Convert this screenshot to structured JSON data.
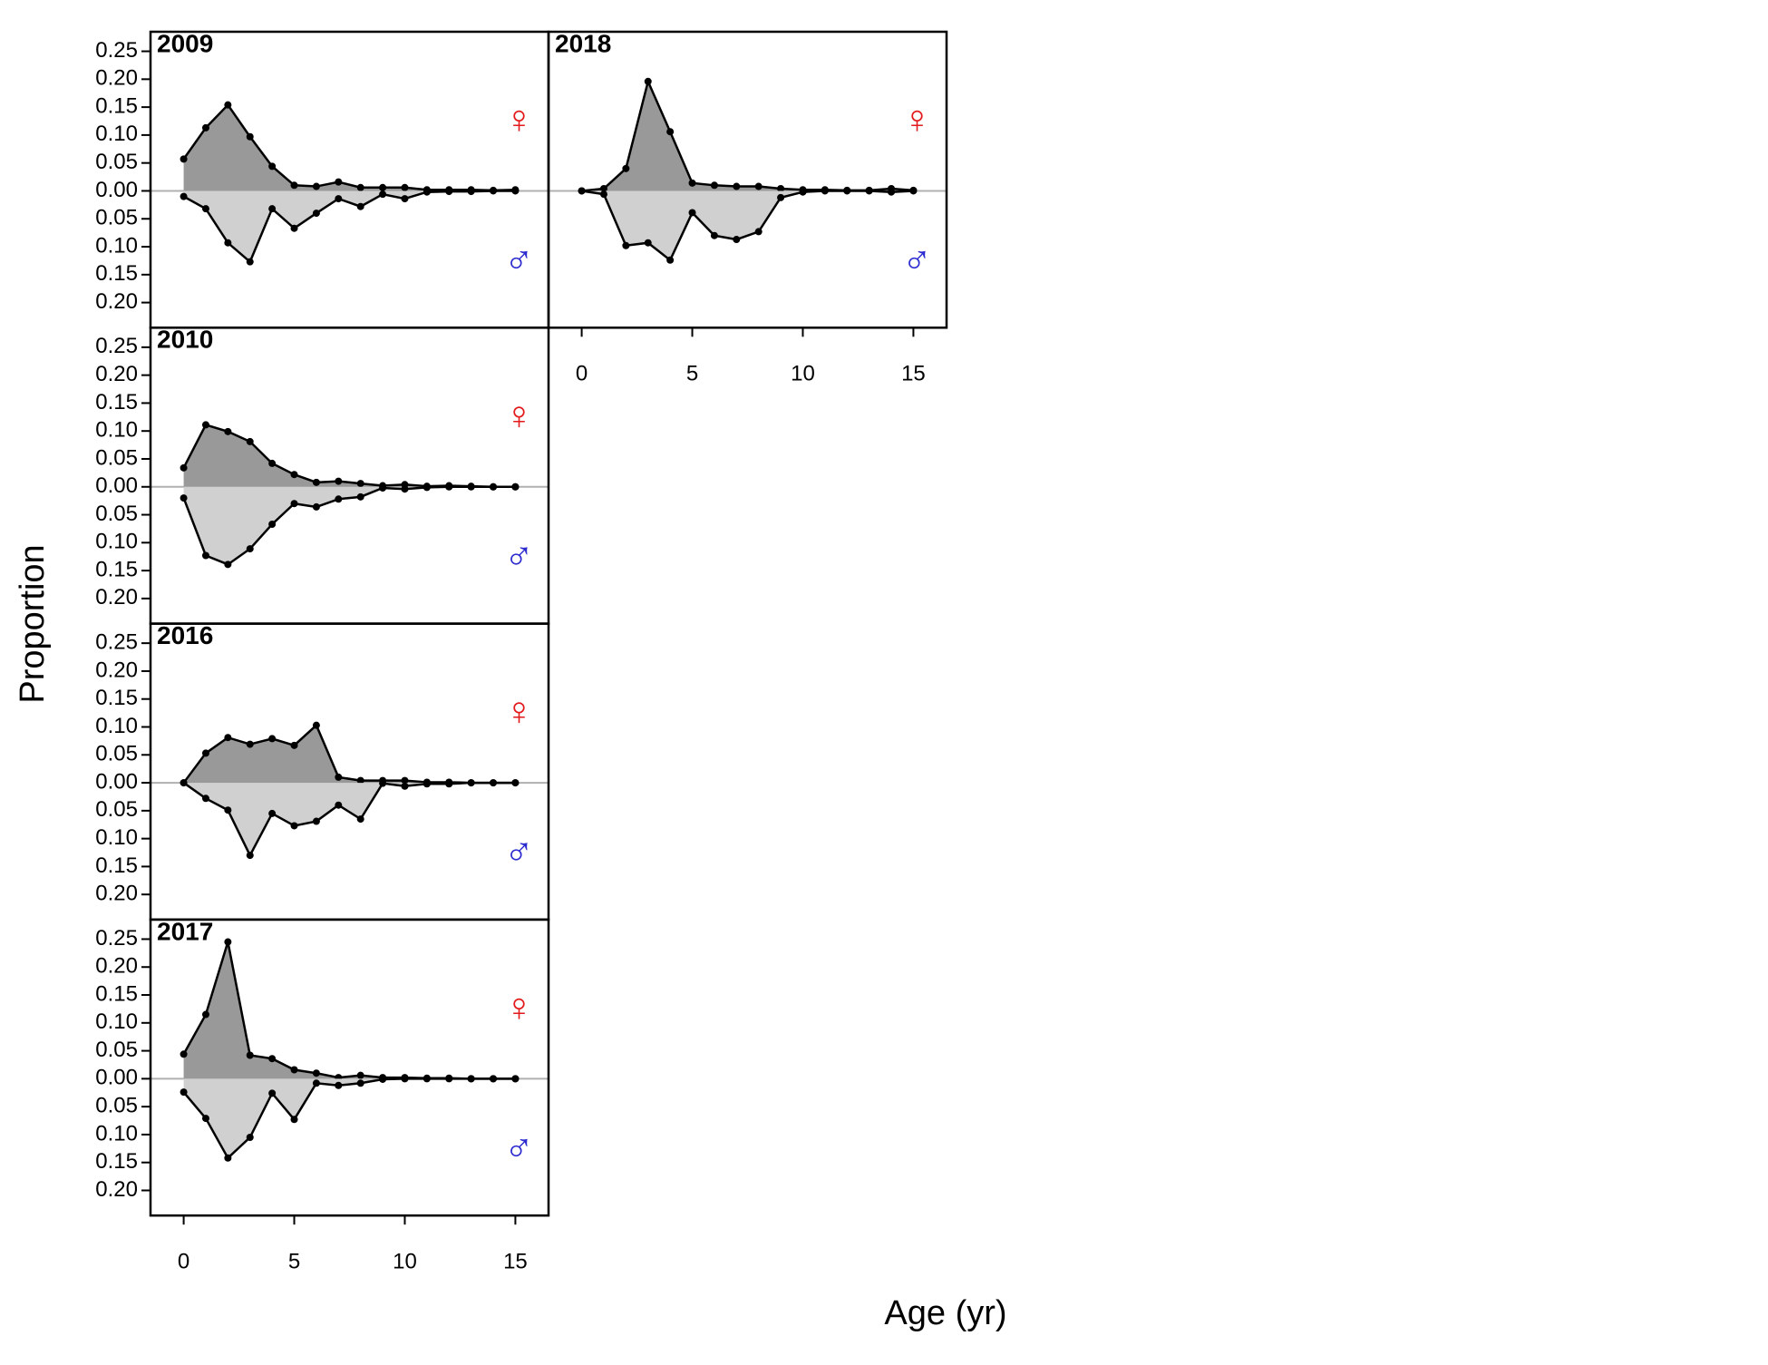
{
  "xlabel": "Age (yr)",
  "ylabel": "Proportion",
  "chart_data": [
    {
      "type": "line",
      "title": "2009",
      "x": [
        0,
        1,
        2,
        3,
        4,
        5,
        6,
        7,
        8,
        9,
        10,
        11,
        12,
        13,
        14,
        15
      ],
      "xlim": [
        -1.5,
        16.5
      ],
      "ylim": [
        -0.245,
        0.285
      ],
      "yticks": [
        0.25,
        {
          "value": 0.2,
          "label": "0.20"
        },
        0.15,
        {
          "value": 0.1,
          "label": "0.10"
        },
        0.05,
        {
          "value": 0,
          "label": "0.00"
        },
        {
          "value": -0.05,
          "label": "0.05"
        },
        {
          "value": -0.1,
          "label": "0.10"
        },
        {
          "value": -0.15,
          "label": "0.15"
        },
        {
          "value": -0.2,
          "label": "0.20"
        }
      ],
      "series": [
        {
          "name": "♀",
          "color": "#e31a1c",
          "fill": "#999999",
          "values": [
            0.057,
            0.113,
            0.154,
            0.097,
            0.044,
            0.01,
            0.008,
            0.016,
            0.006,
            0.006,
            0.006,
            0.002,
            0.002,
            0.002,
            0.001,
            0.002
          ]
        },
        {
          "name": "♂",
          "color": "#2b2bd0",
          "fill": "#d0d0d0",
          "values": [
            -0.01,
            -0.032,
            -0.093,
            -0.127,
            -0.032,
            -0.067,
            -0.04,
            -0.014,
            -0.028,
            -0.006,
            -0.014,
            -0.002,
            -0.001,
            -0.001,
            0,
            0
          ]
        }
      ]
    },
    {
      "type": "line",
      "title": "2018",
      "x": [
        0,
        1,
        2,
        3,
        4,
        5,
        6,
        7,
        8,
        9,
        10,
        11,
        12,
        13,
        14,
        15
      ],
      "xlim": [
        -1.5,
        16.5
      ],
      "ylim": [
        -0.245,
        0.285
      ],
      "xticks": [
        0,
        5,
        10,
        15
      ],
      "series": [
        {
          "name": "♀",
          "color": "#e31a1c",
          "fill": "#999999",
          "values": [
            0,
            0.004,
            0.04,
            0.196,
            0.106,
            0.014,
            0.01,
            0.008,
            0.008,
            0.004,
            0.002,
            0.002,
            0.001,
            0.001,
            0.004,
            0.001
          ]
        },
        {
          "name": "♂",
          "color": "#2b2bd0",
          "fill": "#d0d0d0",
          "values": [
            0,
            -0.006,
            -0.098,
            -0.093,
            -0.124,
            -0.039,
            -0.08,
            -0.087,
            -0.073,
            -0.012,
            -0.002,
            0,
            0,
            0,
            -0.002,
            0
          ]
        }
      ]
    },
    {
      "type": "line",
      "title": "2010",
      "x": [
        0,
        1,
        2,
        3,
        4,
        5,
        6,
        7,
        8,
        9,
        10,
        11,
        12,
        13,
        14,
        15
      ],
      "xlim": [
        -1.5,
        16.5
      ],
      "ylim": [
        -0.245,
        0.285
      ],
      "yticks": [
        0.25,
        {
          "value": 0.2,
          "label": "0.20"
        },
        0.15,
        {
          "value": 0.1,
          "label": "0.10"
        },
        0.05,
        {
          "value": 0,
          "label": "0.00"
        },
        {
          "value": -0.05,
          "label": "0.05"
        },
        {
          "value": -0.1,
          "label": "0.10"
        },
        {
          "value": -0.15,
          "label": "0.15"
        },
        {
          "value": -0.2,
          "label": "0.20"
        }
      ],
      "series": [
        {
          "name": "♀",
          "color": "#e31a1c",
          "fill": "#999999",
          "values": [
            0.034,
            0.111,
            0.099,
            0.081,
            0.042,
            0.022,
            0.008,
            0.01,
            0.006,
            0.002,
            0.004,
            0.001,
            0.002,
            0.001,
            0,
            0
          ]
        },
        {
          "name": "♂",
          "color": "#2b2bd0",
          "fill": "#d0d0d0",
          "values": [
            -0.02,
            -0.123,
            -0.139,
            -0.111,
            -0.067,
            -0.03,
            -0.036,
            -0.022,
            -0.018,
            -0.002,
            -0.004,
            -0.001,
            0,
            0,
            0,
            0
          ]
        }
      ]
    },
    {
      "type": "line",
      "title": "2016",
      "x": [
        0,
        1,
        2,
        3,
        4,
        5,
        6,
        7,
        8,
        9,
        10,
        11,
        12,
        13,
        14,
        15
      ],
      "xlim": [
        -1.5,
        16.5
      ],
      "ylim": [
        -0.245,
        0.285
      ],
      "yticks": [
        0.25,
        {
          "value": 0.2,
          "label": "0.20"
        },
        0.15,
        {
          "value": 0.1,
          "label": "0.10"
        },
        0.05,
        {
          "value": 0,
          "label": "0.00"
        },
        {
          "value": -0.05,
          "label": "0.05"
        },
        {
          "value": -0.1,
          "label": "0.10"
        },
        {
          "value": -0.15,
          "label": "0.15"
        },
        {
          "value": -0.2,
          "label": "0.20"
        }
      ],
      "series": [
        {
          "name": "♀",
          "color": "#e31a1c",
          "fill": "#999999",
          "values": [
            0,
            0.053,
            0.081,
            0.069,
            0.079,
            0.067,
            0.103,
            0.01,
            0.004,
            0.004,
            0.004,
            0.001,
            0.001,
            0,
            0,
            0
          ]
        },
        {
          "name": "♂",
          "color": "#2b2bd0",
          "fill": "#d0d0d0",
          "values": [
            0,
            -0.028,
            -0.049,
            -0.13,
            -0.055,
            -0.077,
            -0.069,
            -0.04,
            -0.065,
            -0.001,
            -0.006,
            -0.002,
            -0.002,
            0,
            0,
            0
          ]
        }
      ]
    },
    {
      "type": "line",
      "title": "2017",
      "x": [
        0,
        1,
        2,
        3,
        4,
        5,
        6,
        7,
        8,
        9,
        10,
        11,
        12,
        13,
        14,
        15
      ],
      "xlim": [
        -1.5,
        16.5
      ],
      "ylim": [
        -0.245,
        0.285
      ],
      "xticks": [
        0,
        5,
        10,
        15
      ],
      "yticks": [
        0.25,
        {
          "value": 0.2,
          "label": "0.20"
        },
        0.15,
        {
          "value": 0.1,
          "label": "0.10"
        },
        0.05,
        {
          "value": 0,
          "label": "0.00"
        },
        {
          "value": -0.05,
          "label": "0.05"
        },
        {
          "value": -0.1,
          "label": "0.10"
        },
        {
          "value": -0.15,
          "label": "0.15"
        },
        {
          "value": -0.2,
          "label": "0.20"
        }
      ],
      "series": [
        {
          "name": "♀",
          "color": "#e31a1c",
          "fill": "#999999",
          "values": [
            0.044,
            0.115,
            0.245,
            0.042,
            0.036,
            0.016,
            0.01,
            0.002,
            0.006,
            0.002,
            0.002,
            0.001,
            0.001,
            0,
            0,
            0
          ]
        },
        {
          "name": "♂",
          "color": "#2b2bd0",
          "fill": "#d0d0d0",
          "values": [
            -0.024,
            -0.071,
            -0.142,
            -0.105,
            -0.026,
            -0.073,
            -0.008,
            -0.012,
            -0.008,
            -0.001,
            0,
            0,
            0,
            0,
            0,
            0
          ]
        }
      ]
    }
  ]
}
